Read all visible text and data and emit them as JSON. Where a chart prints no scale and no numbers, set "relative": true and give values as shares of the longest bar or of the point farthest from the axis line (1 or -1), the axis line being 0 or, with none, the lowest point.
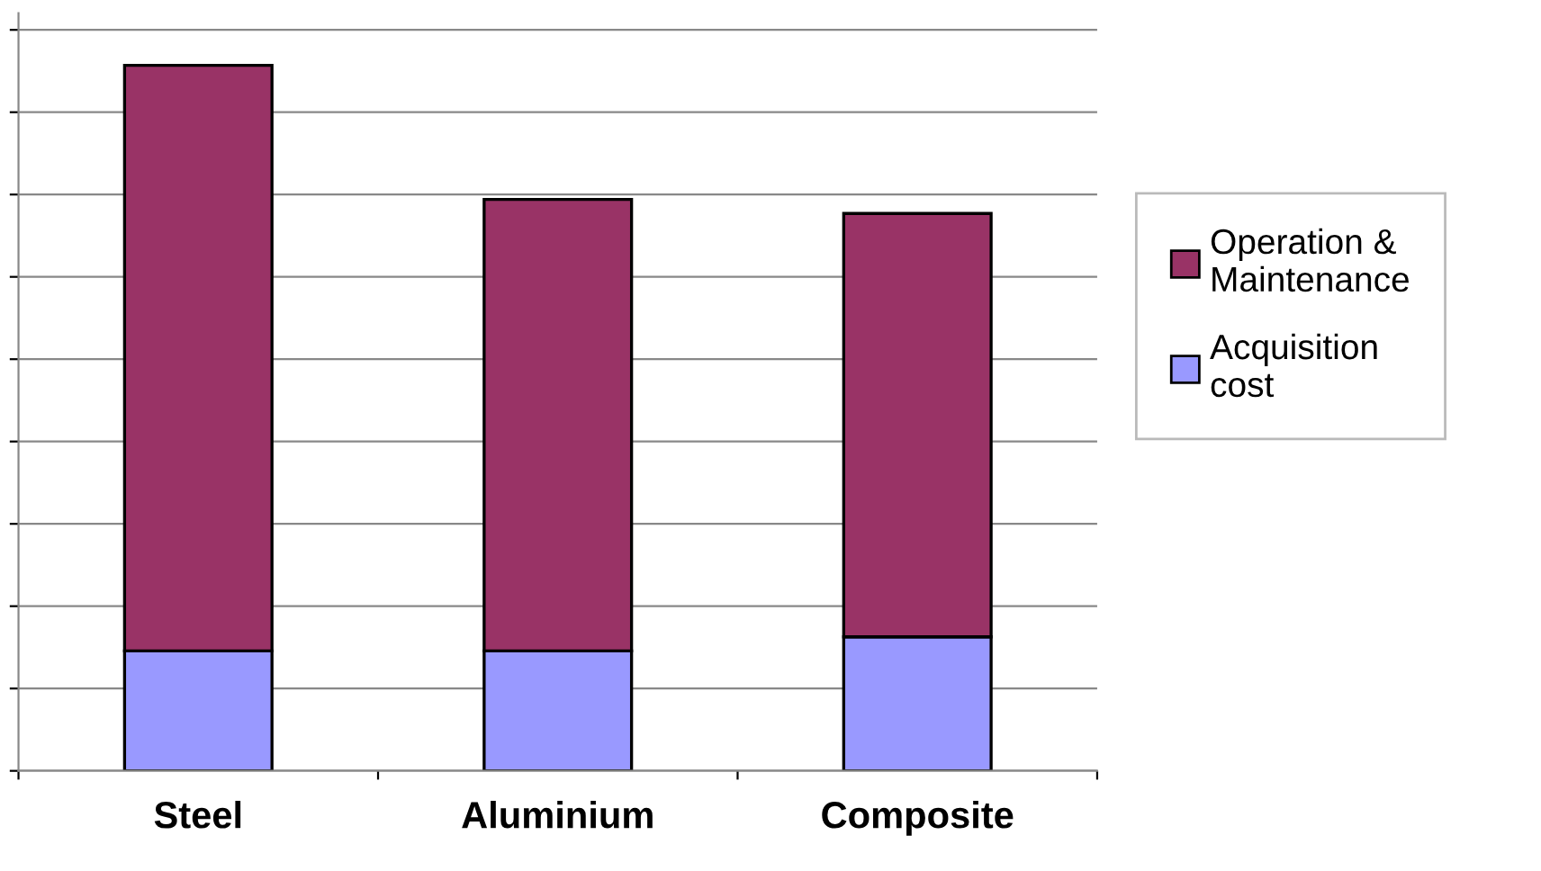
{
  "chart_data": {
    "type": "bar",
    "stacked": true,
    "relative": true,
    "categories": [
      "Steel",
      "Aluminium",
      "Composite"
    ],
    "series": [
      {
        "name": "Acquisition cost",
        "color": "#9999ff",
        "values": [
          0.17,
          0.17,
          0.19
        ]
      },
      {
        "name": "Operation & Maintenance",
        "color": "#993366",
        "values": [
          0.83,
          0.64,
          0.6
        ]
      }
    ],
    "grid": "y",
    "legend": "right"
  }
}
